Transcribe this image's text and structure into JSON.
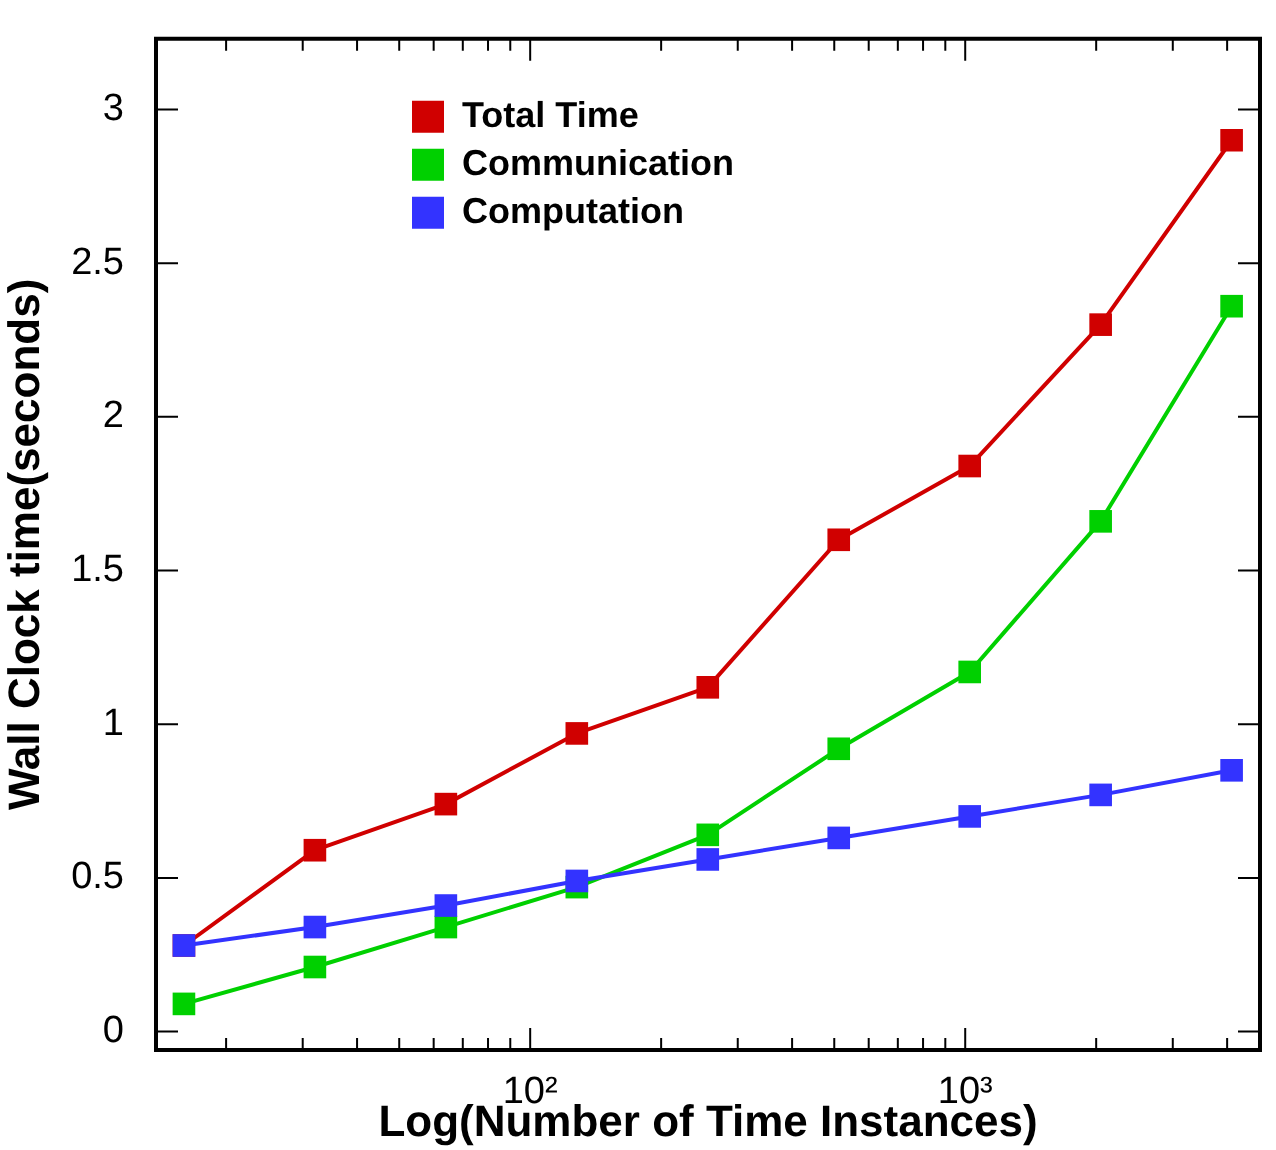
{
  "chart_data": {
    "type": "line",
    "xlabel": "Log(Number of Time Instances)",
    "ylabel": "Wall Clock time(seconds)",
    "x": [
      16,
      32,
      64,
      128,
      256,
      512,
      1024,
      2048,
      4096
    ],
    "series": [
      {
        "name": "Total Time",
        "color": "#d00000",
        "values": [
          0.28,
          0.59,
          0.74,
          0.97,
          1.12,
          1.6,
          1.84,
          2.3,
          2.9
        ]
      },
      {
        "name": "Communication",
        "color": "#00d000",
        "values": [
          0.09,
          0.21,
          0.34,
          0.47,
          0.64,
          0.92,
          1.17,
          1.66,
          2.36
        ]
      },
      {
        "name": "Computation",
        "color": "#3333ff",
        "values": [
          0.28,
          0.34,
          0.41,
          0.49,
          0.56,
          0.63,
          0.7,
          0.77,
          0.85
        ]
      }
    ],
    "log": "x",
    "xlim": [
      13.8,
      4760
    ],
    "ylim": [
      -0.06,
      3.23
    ],
    "xticks": [
      {
        "value": 20,
        "label": null
      },
      {
        "value": 30,
        "label": null
      },
      {
        "value": 40,
        "label": null
      },
      {
        "value": 50,
        "label": null
      },
      {
        "value": 60,
        "label": null
      },
      {
        "value": 70,
        "label": null
      },
      {
        "value": 80,
        "label": null
      },
      {
        "value": 90,
        "label": null
      },
      {
        "value": 100,
        "label": "10²"
      },
      {
        "value": 200,
        "label": null
      },
      {
        "value": 300,
        "label": null
      },
      {
        "value": 400,
        "label": null
      },
      {
        "value": 500,
        "label": null
      },
      {
        "value": 600,
        "label": null
      },
      {
        "value": 700,
        "label": null
      },
      {
        "value": 800,
        "label": null
      },
      {
        "value": 900,
        "label": null
      },
      {
        "value": 1000,
        "label": "10³"
      },
      {
        "value": 2000,
        "label": null
      },
      {
        "value": 3000,
        "label": null
      },
      {
        "value": 4000,
        "label": null
      }
    ],
    "yticks": [
      0,
      0.5,
      1,
      1.5,
      2,
      2.5,
      3
    ],
    "grid": false,
    "legend": "top left",
    "marker": "square",
    "line_style": "solid"
  }
}
